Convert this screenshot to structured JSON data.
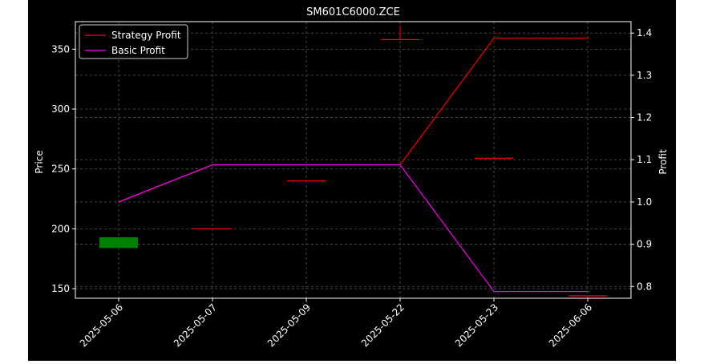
{
  "chart_data": {
    "type": "candlestick+line",
    "title": "SM601C6000.ZCE",
    "ylabel_left": "Price",
    "ylabel_right": "Profit",
    "grid": true,
    "legend_placement": "top-left",
    "colors": {
      "background": "#000000",
      "text": "#ffffff",
      "grid": "#555555",
      "up_candle": "#008000",
      "down_candle": "#ff0000",
      "strategy_profit": "#ff0000",
      "basic_profit": "#ff00ff"
    },
    "categories": [
      "2025-05-06",
      "2025-05-07",
      "2025-05-09",
      "2025-05-22",
      "2025-05-23",
      "2025-06-06"
    ],
    "left_axis": {
      "ylim": [
        142,
        373
      ],
      "ticks": [
        150,
        200,
        250,
        300,
        350
      ]
    },
    "right_axis": {
      "ylim": [
        0.772,
        1.427
      ],
      "ticks": [
        0.8,
        0.9,
        1.0,
        1.1,
        1.2,
        1.3,
        1.4
      ]
    },
    "candles": [
      {
        "date": "2025-05-06",
        "open": 184,
        "high": 193,
        "low": 184,
        "close": 193
      },
      {
        "date": "2025-05-07",
        "open": 200,
        "high": 200,
        "low": 200,
        "close": 200
      },
      {
        "date": "2025-05-09",
        "open": 240,
        "high": 240,
        "low": 240,
        "close": 240
      },
      {
        "date": "2025-05-22",
        "open": 358,
        "high": 370,
        "low": 358,
        "close": 358
      },
      {
        "date": "2025-05-23",
        "open": 259,
        "high": 259,
        "low": 259,
        "close": 259
      },
      {
        "date": "2025-06-06",
        "open": 144,
        "high": 144,
        "low": 144,
        "close": 144
      }
    ],
    "series": [
      {
        "name": "Strategy Profit",
        "values": [
          1.0,
          1.088,
          1.088,
          1.088,
          1.388,
          1.388
        ]
      },
      {
        "name": "Basic Profit",
        "values": [
          1.0,
          1.088,
          1.088,
          1.088,
          0.788,
          0.788
        ]
      }
    ]
  }
}
